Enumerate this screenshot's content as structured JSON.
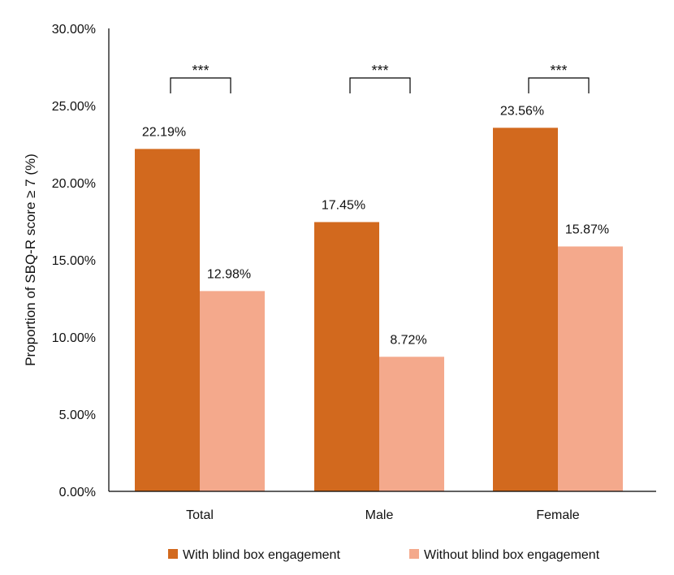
{
  "chart_data": {
    "type": "bar",
    "title": "",
    "xlabel": "",
    "ylabel": "Proportion of SBQ-R score ≥ 7 (%)",
    "ylim": [
      0,
      30
    ],
    "yticks": [
      0,
      5,
      10,
      15,
      20,
      25,
      30
    ],
    "ytick_labels": [
      "0.00%",
      "5.00%",
      "10.00%",
      "15.00%",
      "20.00%",
      "25.00%",
      "30.00%"
    ],
    "categories": [
      "Total",
      "Male",
      "Female"
    ],
    "series": [
      {
        "name": "With blind box engagement",
        "color": "#D2691E",
        "values": [
          22.19,
          17.45,
          23.56
        ],
        "labels": [
          "22.19%",
          "17.45%",
          "23.56%"
        ]
      },
      {
        "name": "Without blind box engagement",
        "color": "#F4A98C",
        "values": [
          12.98,
          8.72,
          15.87
        ],
        "labels": [
          "12.98%",
          "8.72%",
          "15.87%"
        ]
      }
    ],
    "significance": [
      "***",
      "***",
      "***"
    ],
    "grid": false,
    "legend_position": "bottom"
  }
}
